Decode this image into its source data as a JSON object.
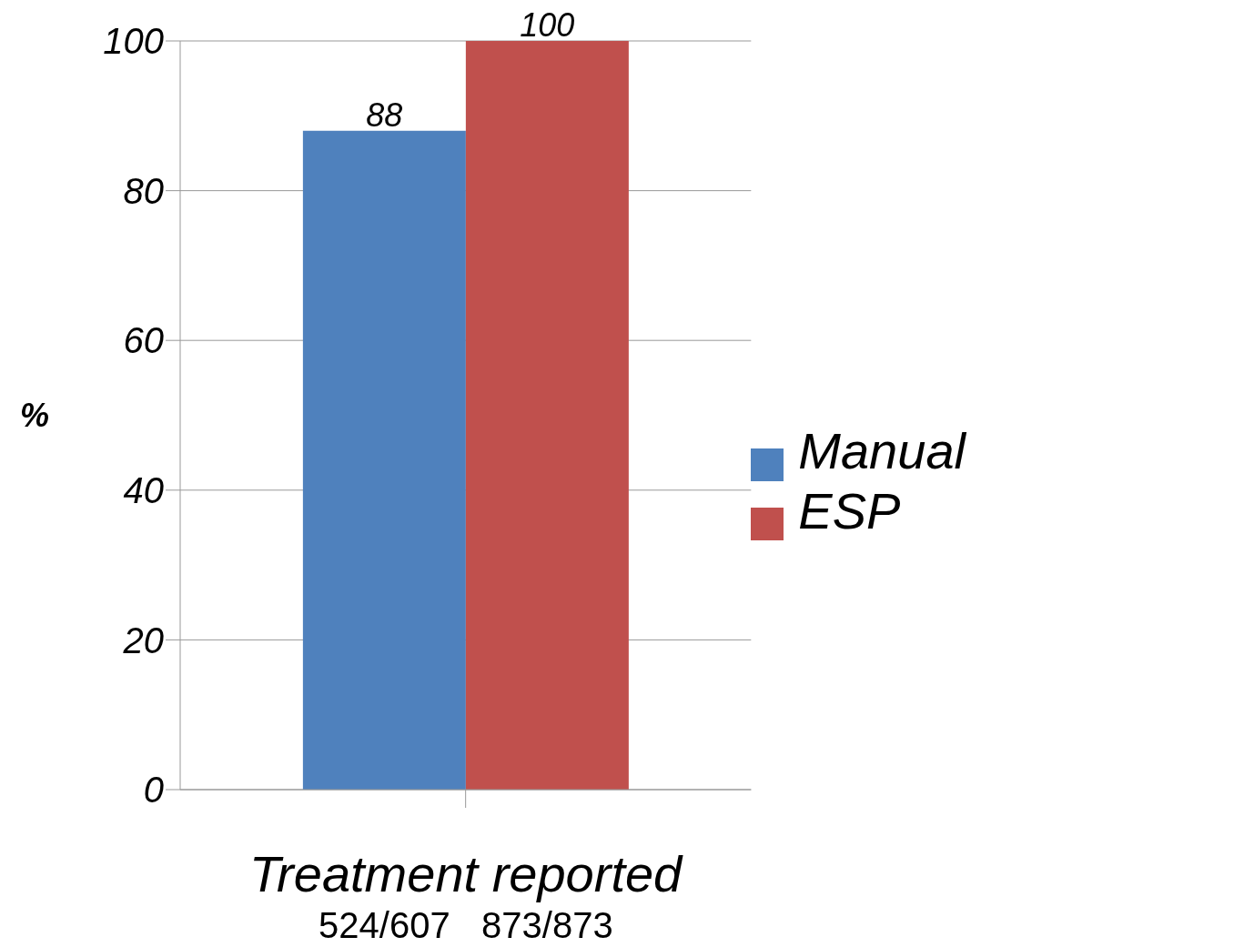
{
  "chart_data": {
    "type": "bar",
    "categories": [
      "Treatment reported"
    ],
    "ylabel": "%",
    "series": [
      {
        "name": "Manual",
        "color": "#4f81bd",
        "values": [
          88
        ]
      },
      {
        "name": "ESP",
        "color": "#c0504d",
        "values": [
          100
        ]
      }
    ],
    "ylim": [
      0,
      100
    ],
    "yticks": [
      0,
      20,
      40,
      60,
      80,
      100
    ],
    "grid": "y",
    "legend": "right",
    "data_labels": true,
    "annotations": [
      "524/607",
      "873/873"
    ]
  }
}
